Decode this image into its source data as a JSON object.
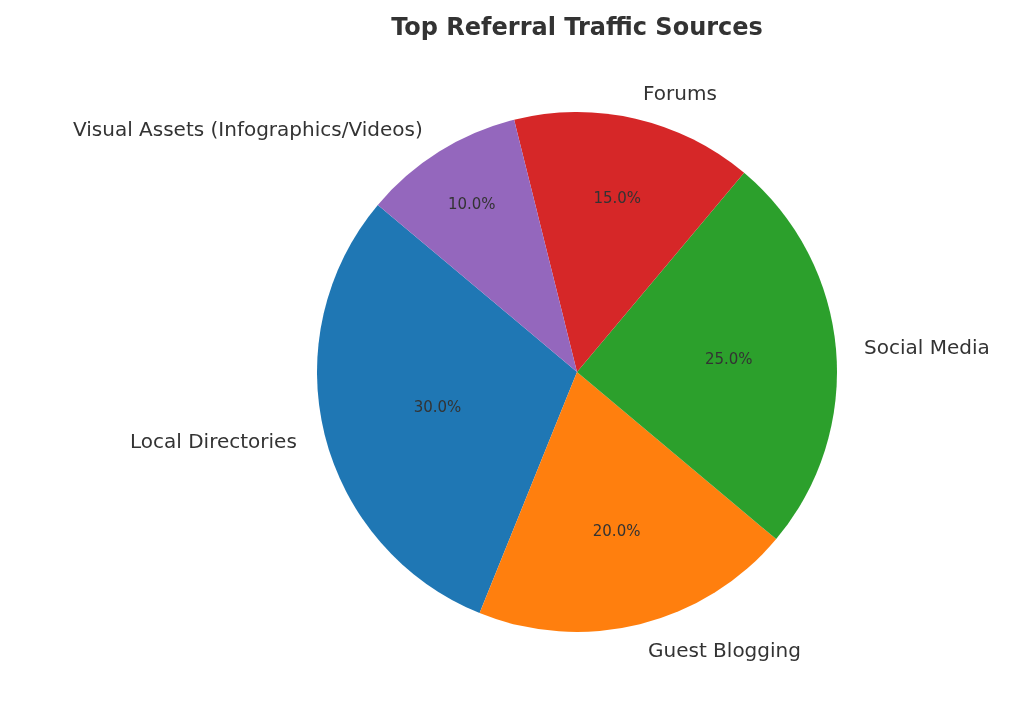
{
  "chart_data": {
    "type": "pie",
    "title": "Top Referral Traffic Sources",
    "categories": [
      "Local Directories",
      "Guest Blogging",
      "Social Media",
      "Forums",
      "Visual Assets (Infographics/Videos)"
    ],
    "values": [
      30,
      20,
      25,
      15,
      10
    ],
    "colors": [
      "#1f77b4",
      "#ff7f0e",
      "#2ca02c",
      "#d62728",
      "#9467bd"
    ],
    "value_labels": [
      "30.0%",
      "20.0%",
      "25.0%",
      "15.0%",
      "10.0%"
    ],
    "legend": false
  }
}
